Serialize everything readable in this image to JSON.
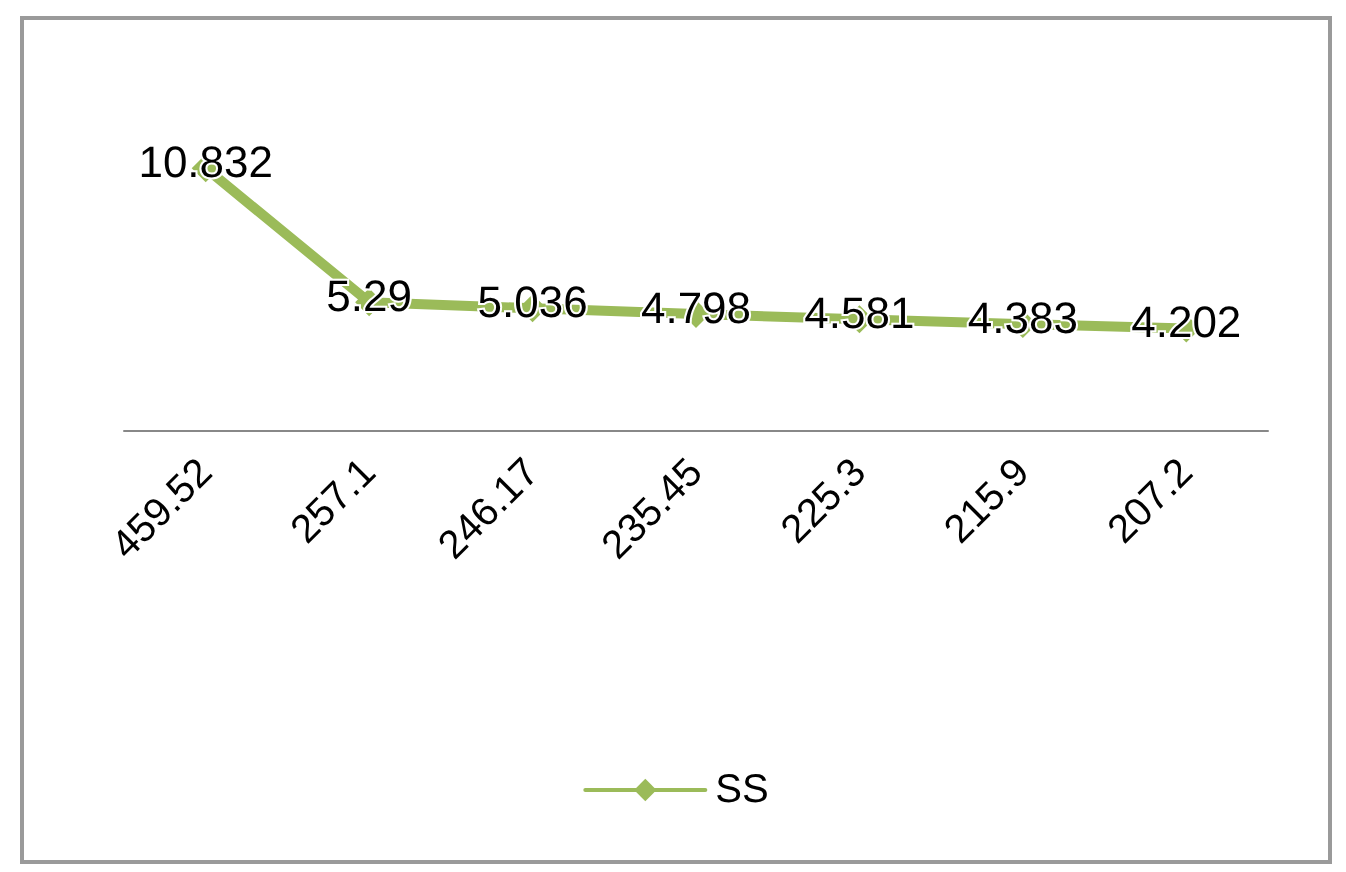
{
  "chart_data": {
    "type": "line",
    "categories": [
      "459.52",
      "257.1",
      "246.17",
      "235.45",
      "225.3",
      "215.9",
      "207.2"
    ],
    "series": [
      {
        "name": "SS",
        "color": "#9bbb59",
        "values": [
          10.832,
          5.29,
          5.036,
          4.798,
          4.581,
          4.383,
          4.202
        ]
      }
    ],
    "data_labels": true,
    "legend": "bottom",
    "marker": "diamond",
    "line_style": "solid",
    "grid": false
  }
}
